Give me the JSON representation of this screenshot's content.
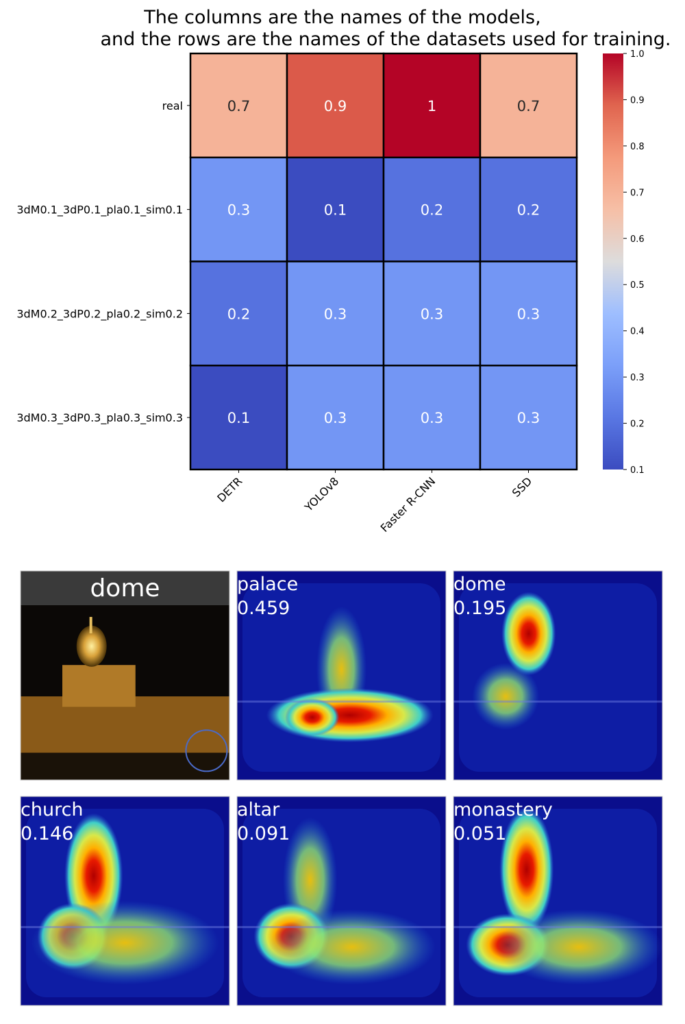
{
  "title_lines": [
    "The columns are the names of the models,",
    "and the rows are the names of the datasets used for training."
  ],
  "chart_data": {
    "type": "heatmap",
    "title": "The columns are the names of the models,\nand the rows are the names of the datasets used for training.",
    "columns": [
      "DETR",
      "YOLOv8",
      "Faster R-CNN",
      "SSD"
    ],
    "rows": [
      "real",
      "3dM0.1_3dP0.1_pla0.1_sim0.1",
      "3dM0.2_3dP0.2_pla0.2_sim0.2",
      "3dM0.3_3dP0.3_pla0.3_sim0.3"
    ],
    "values": [
      [
        0.7,
        0.9,
        1,
        0.7
      ],
      [
        0.3,
        0.1,
        0.2,
        0.2
      ],
      [
        0.2,
        0.3,
        0.3,
        0.3
      ],
      [
        0.1,
        0.3,
        0.3,
        0.3
      ]
    ],
    "colormap": "coolwarm",
    "vmin": 0.1,
    "vmax": 1.0,
    "colorbar_ticks": [
      "0.1",
      "0.2",
      "0.3",
      "0.4",
      "0.5",
      "0.6",
      "0.7",
      "0.8",
      "0.9",
      "1.0"
    ]
  },
  "cam_panels": [
    {
      "label": "dome",
      "score": "",
      "kind": "photo"
    },
    {
      "label": "palace",
      "score": "0.459",
      "kind": "heat"
    },
    {
      "label": "dome",
      "score": "0.195",
      "kind": "heat"
    },
    {
      "label": "church",
      "score": "0.146",
      "kind": "heat"
    },
    {
      "label": "altar",
      "score": "0.091",
      "kind": "heat"
    },
    {
      "label": "monastery",
      "score": "0.051",
      "kind": "heat"
    }
  ]
}
